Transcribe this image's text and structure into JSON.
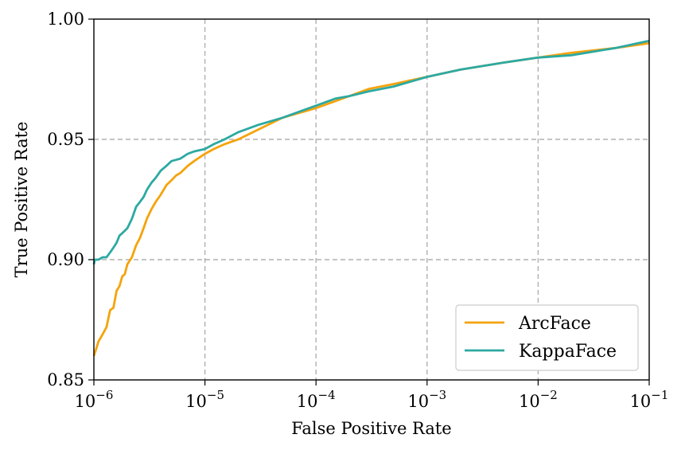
{
  "chart_data": {
    "type": "line",
    "title": "",
    "xlabel": "False Positive Rate",
    "ylabel": "True Positive Rate",
    "xscale": "log",
    "xlim": [
      1e-06,
      0.1
    ],
    "ylim": [
      0.85,
      1.0
    ],
    "xticks": [
      {
        "value": 1e-06,
        "base": "10",
        "exp": "−6"
      },
      {
        "value": 1e-05,
        "base": "10",
        "exp": "−5"
      },
      {
        "value": 0.0001,
        "base": "10",
        "exp": "−4"
      },
      {
        "value": 0.001,
        "base": "10",
        "exp": "−3"
      },
      {
        "value": 0.01,
        "base": "10",
        "exp": "−2"
      },
      {
        "value": 0.1,
        "base": "10",
        "exp": "−1"
      }
    ],
    "yticks": [
      {
        "value": 0.85,
        "label": "0.85"
      },
      {
        "value": 0.9,
        "label": "0.90"
      },
      {
        "value": 0.95,
        "label": "0.95"
      },
      {
        "value": 1.0,
        "label": "1.00"
      }
    ],
    "grid": true,
    "legend_position": "bottom-right",
    "series": [
      {
        "name": "ArcFace",
        "color": "#f5a30b",
        "x": [
          1e-06,
          1.05e-06,
          1.1e-06,
          1.2e-06,
          1.3e-06,
          1.4e-06,
          1.5e-06,
          1.6e-06,
          1.7e-06,
          1.8e-06,
          1.9e-06,
          2e-06,
          2.2e-06,
          2.4e-06,
          2.6e-06,
          2.8e-06,
          3e-06,
          3.3e-06,
          3.6e-06,
          4e-06,
          4.5e-06,
          5e-06,
          5.5e-06,
          6e-06,
          7e-06,
          8e-06,
          1e-05,
          1.2e-05,
          1.5e-05,
          2e-05,
          3e-05,
          5e-05,
          0.0001,
          0.0002,
          0.0003,
          0.0005,
          0.001,
          0.002,
          0.005,
          0.01,
          0.02,
          0.05,
          0.1
        ],
        "y": [
          0.86,
          0.863,
          0.866,
          0.869,
          0.872,
          0.879,
          0.88,
          0.887,
          0.889,
          0.893,
          0.894,
          0.898,
          0.901,
          0.906,
          0.909,
          0.913,
          0.917,
          0.921,
          0.924,
          0.927,
          0.931,
          0.933,
          0.935,
          0.936,
          0.939,
          0.941,
          0.944,
          0.946,
          0.948,
          0.95,
          0.954,
          0.959,
          0.963,
          0.968,
          0.971,
          0.973,
          0.976,
          0.979,
          0.982,
          0.984,
          0.986,
          0.988,
          0.99
        ]
      },
      {
        "name": "KappaFace",
        "color": "#2ca9a2",
        "x": [
          1e-06,
          1.02e-06,
          1.1e-06,
          1.2e-06,
          1.3e-06,
          1.4e-06,
          1.5e-06,
          1.6e-06,
          1.7e-06,
          1.8e-06,
          2e-06,
          2.2e-06,
          2.4e-06,
          2.6e-06,
          2.8e-06,
          3e-06,
          3.3e-06,
          3.6e-06,
          4e-06,
          4.5e-06,
          5e-06,
          6e-06,
          7e-06,
          8e-06,
          1e-05,
          1.2e-05,
          1.5e-05,
          2e-05,
          3e-05,
          5e-05,
          0.0001,
          0.00015,
          0.0002,
          0.0003,
          0.0005,
          0.001,
          0.002,
          0.005,
          0.01,
          0.02,
          0.05,
          0.1
        ],
        "y": [
          0.898,
          0.9,
          0.9,
          0.901,
          0.901,
          0.903,
          0.905,
          0.907,
          0.91,
          0.911,
          0.913,
          0.917,
          0.922,
          0.924,
          0.926,
          0.929,
          0.932,
          0.934,
          0.937,
          0.939,
          0.941,
          0.942,
          0.944,
          0.945,
          0.946,
          0.948,
          0.95,
          0.953,
          0.956,
          0.959,
          0.964,
          0.967,
          0.968,
          0.97,
          0.972,
          0.976,
          0.979,
          0.982,
          0.984,
          0.985,
          0.988,
          0.991
        ]
      }
    ]
  }
}
